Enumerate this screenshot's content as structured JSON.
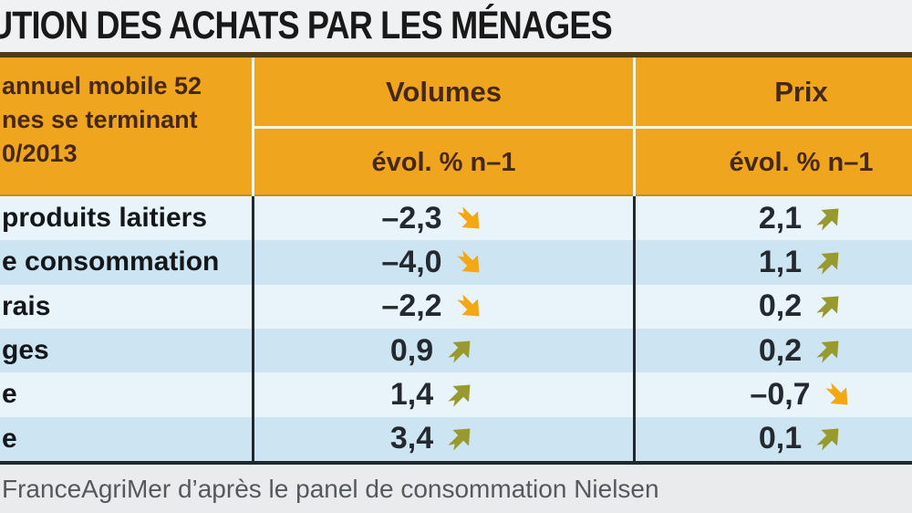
{
  "title": "UTION DES ACHATS PAR LES MÉNAGES",
  "header": {
    "row_label_lines": [
      "annuel mobile 52",
      "nes se terminant",
      "0/2013"
    ],
    "volumes": {
      "label": "Volumes",
      "sub": "évol. % n–1"
    },
    "prix": {
      "label": "Prix",
      "sub": "évol. % n–1"
    }
  },
  "rows": [
    {
      "label": "produits laitiers",
      "volumes": {
        "value": "–2,3",
        "trend": "down"
      },
      "prix": {
        "value": "2,1",
        "trend": "up"
      }
    },
    {
      "label": "e consommation",
      "volumes": {
        "value": "–4,0",
        "trend": "down"
      },
      "prix": {
        "value": "1,1",
        "trend": "up"
      }
    },
    {
      "label": "rais",
      "volumes": {
        "value": "–2,2",
        "trend": "down"
      },
      "prix": {
        "value": "0,2",
        "trend": "up"
      }
    },
    {
      "label": "ges",
      "volumes": {
        "value": "0,9",
        "trend": "up"
      },
      "prix": {
        "value": "0,2",
        "trend": "up"
      }
    },
    {
      "label": "e",
      "volumes": {
        "value": "1,4",
        "trend": "up"
      },
      "prix": {
        "value": "–0,7",
        "trend": "down"
      }
    },
    {
      "label": "e",
      "volumes": {
        "value": "3,4",
        "trend": "up"
      },
      "prix": {
        "value": "0,1",
        "trend": "up"
      }
    }
  ],
  "source": "FranceAgriMer d’après le panel de consommation Nielsen",
  "colors": {
    "header_bg": "#f0a51f",
    "header_text": "#45280f",
    "header_divider": "#fdf7e0",
    "title_underline": "#4d3c16",
    "row_light": "#e9f3fa",
    "row_dark": "#cde5f3",
    "grid_dark": "#1f2930",
    "up_arrow": "#98992e",
    "down_arrow": "#f3a713",
    "page_bg": "#f0f1f3",
    "footer_bg": "#e9ebed",
    "footer_text": "#55585c"
  },
  "chart_data": {
    "type": "table",
    "title": "UTION DES ACHATS PAR LES MÉNAGES",
    "row_header_lines": [
      "annuel mobile 52",
      "nes se terminant",
      "0/2013"
    ],
    "columns": [
      "Volumes — évol. % n–1",
      "Prix — évol. % n–1"
    ],
    "categories": [
      "produits laitiers",
      "e consommation",
      "rais",
      "ges",
      "e",
      "e"
    ],
    "series": [
      {
        "name": "Volumes",
        "values": [
          -2.3,
          -4.0,
          -2.2,
          0.9,
          1.4,
          3.4
        ],
        "trends": [
          "down",
          "down",
          "down",
          "up",
          "up",
          "up"
        ]
      },
      {
        "name": "Prix",
        "values": [
          2.1,
          1.1,
          0.2,
          0.2,
          -0.7,
          0.1
        ],
        "trends": [
          "up",
          "up",
          "up",
          "up",
          "down",
          "up"
        ]
      }
    ],
    "source": "FranceAgriMer d’après le panel de consommation Nielsen"
  }
}
